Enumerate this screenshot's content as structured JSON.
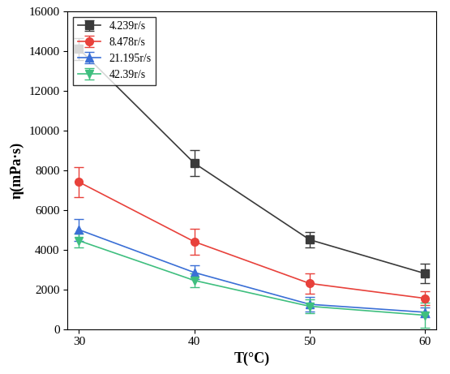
{
  "chart_data": {
    "type": "line",
    "x_label": "T(°C)",
    "y_label": "η(mPa·s)",
    "x": [
      30,
      40,
      50,
      60
    ],
    "series": [
      {
        "name": "4.239r/s",
        "color": "#3a3a3a",
        "marker": "square",
        "line_style": "solid",
        "values": [
          14100,
          8350,
          4500,
          2800
        ],
        "errors": [
          550,
          650,
          380,
          500
        ]
      },
      {
        "name": "8.478r/s",
        "color": "#e8413b",
        "marker": "circle",
        "line_style": "solid",
        "values": [
          7400,
          4400,
          2300,
          1550
        ],
        "errors": [
          750,
          650,
          500,
          350
        ]
      },
      {
        "name": "21.195r/s",
        "color": "#3a6fd6",
        "marker": "triangle_up",
        "line_style": "solid",
        "values": [
          5000,
          2850,
          1250,
          850
        ],
        "errors": [
          550,
          350,
          350,
          250
        ]
      },
      {
        "name": "42.39r/s",
        "color": "#3fbf7f",
        "marker": "triangle_down",
        "line_style": "solid",
        "values": [
          4450,
          2450,
          1150,
          700
        ],
        "errors": [
          350,
          350,
          350,
          650
        ]
      }
    ],
    "xlim": [
      29,
      61
    ],
    "xticks": [
      30,
      40,
      50,
      60
    ],
    "ylim": [
      0,
      16000
    ],
    "yticks": [
      0,
      2000,
      4000,
      6000,
      8000,
      10000,
      12000,
      14000,
      16000
    ],
    "grid": false,
    "legend": "upper left"
  }
}
